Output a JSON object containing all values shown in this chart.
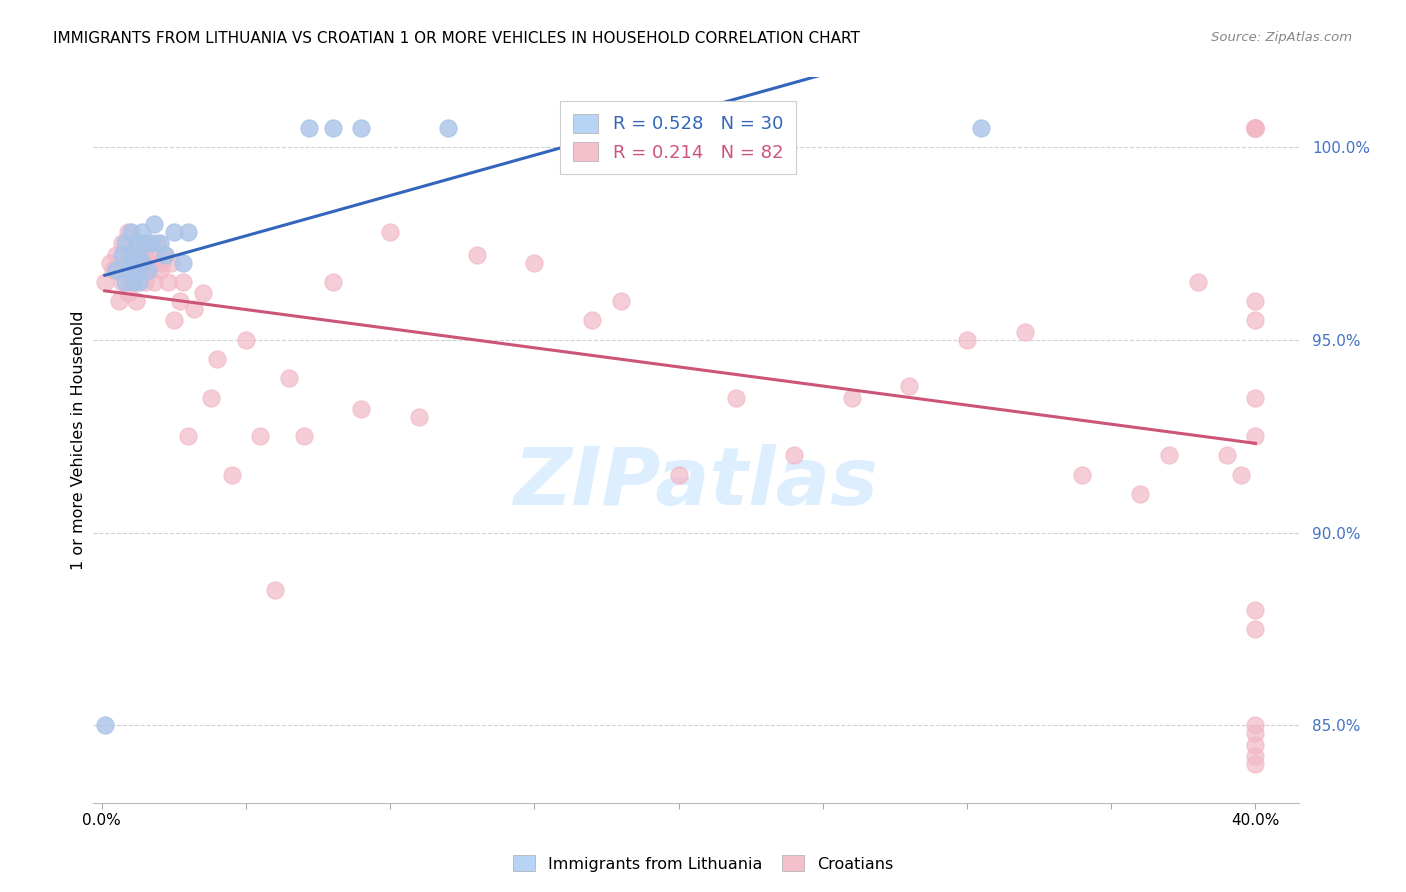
{
  "title": "IMMIGRANTS FROM LITHUANIA VS CROATIAN 1 OR MORE VEHICLES IN HOUSEHOLD CORRELATION CHART",
  "source": "Source: ZipAtlas.com",
  "ylabel": "1 or more Vehicles in Household",
  "ylim": [
    83.0,
    101.8
  ],
  "xlim": [
    -0.003,
    0.415
  ],
  "yticks": [
    85.0,
    90.0,
    95.0,
    100.0
  ],
  "xticks": [
    0.0,
    0.05,
    0.1,
    0.15,
    0.2,
    0.25,
    0.3,
    0.35,
    0.4
  ],
  "xtick_labels": [
    "0.0%",
    "",
    "",
    "",
    "",
    "",
    "",
    "",
    "40.0%"
  ],
  "blue_R": 0.528,
  "blue_N": 30,
  "pink_R": 0.214,
  "pink_N": 82,
  "blue_dot_color": "#aac4e8",
  "pink_dot_color": "#f2b8c6",
  "blue_line_color": "#3366bb",
  "pink_line_color": "#cc5577",
  "legend_blue_fill": "#b8d4f4",
  "legend_pink_fill": "#f4c0cc",
  "watermark_text": "ZIPatlas",
  "watermark_color": "#ddeeff",
  "blue_x": [
    0.001,
    0.005,
    0.007,
    0.008,
    0.008,
    0.009,
    0.01,
    0.01,
    0.011,
    0.011,
    0.012,
    0.012,
    0.013,
    0.013,
    0.014,
    0.014,
    0.015,
    0.016,
    0.017,
    0.018,
    0.02,
    0.022,
    0.025,
    0.028,
    0.03,
    0.072,
    0.08,
    0.09,
    0.12,
    0.305
  ],
  "blue_y": [
    85.0,
    96.8,
    97.2,
    97.5,
    96.5,
    96.8,
    97.8,
    97.2,
    96.5,
    97.0,
    97.5,
    96.8,
    97.2,
    96.5,
    97.8,
    97.0,
    97.5,
    96.8,
    97.5,
    98.0,
    97.5,
    97.2,
    97.8,
    97.0,
    97.8,
    100.5,
    100.5,
    100.5,
    100.5,
    100.5
  ],
  "pink_x": [
    0.001,
    0.003,
    0.004,
    0.005,
    0.006,
    0.007,
    0.007,
    0.008,
    0.009,
    0.009,
    0.01,
    0.011,
    0.011,
    0.012,
    0.012,
    0.013,
    0.013,
    0.014,
    0.015,
    0.015,
    0.016,
    0.016,
    0.017,
    0.018,
    0.018,
    0.019,
    0.02,
    0.021,
    0.022,
    0.023,
    0.024,
    0.025,
    0.027,
    0.028,
    0.03,
    0.032,
    0.035,
    0.038,
    0.04,
    0.045,
    0.05,
    0.055,
    0.06,
    0.065,
    0.07,
    0.08,
    0.09,
    0.1,
    0.11,
    0.13,
    0.15,
    0.17,
    0.18,
    0.2,
    0.22,
    0.24,
    0.26,
    0.28,
    0.3,
    0.32,
    0.34,
    0.36,
    0.37,
    0.38,
    0.39,
    0.395,
    0.4,
    0.4,
    0.4,
    0.4,
    0.4,
    0.4,
    0.4,
    0.4,
    0.4,
    0.4,
    0.4,
    0.4,
    0.4,
    0.4,
    0.4,
    0.4
  ],
  "pink_y": [
    96.5,
    97.0,
    96.8,
    97.2,
    96.0,
    97.5,
    96.5,
    97.0,
    96.2,
    97.8,
    96.5,
    97.0,
    96.8,
    97.2,
    96.0,
    97.5,
    96.8,
    97.0,
    96.5,
    97.2,
    97.0,
    96.8,
    97.2,
    96.5,
    97.0,
    97.5,
    96.8,
    97.0,
    97.2,
    96.5,
    97.0,
    95.5,
    96.0,
    96.5,
    92.5,
    95.8,
    96.2,
    93.5,
    94.5,
    91.5,
    95.0,
    92.5,
    88.5,
    94.0,
    92.5,
    96.5,
    93.2,
    97.8,
    93.0,
    97.2,
    97.0,
    95.5,
    96.0,
    91.5,
    93.5,
    92.0,
    93.5,
    93.8,
    95.0,
    95.2,
    91.5,
    91.0,
    92.0,
    96.5,
    92.0,
    91.5,
    100.5,
    100.5,
    100.5,
    100.5,
    100.5,
    84.5,
    84.8,
    85.0,
    93.5,
    96.0,
    95.5,
    87.5,
    88.0,
    84.2,
    84.0,
    92.5
  ]
}
